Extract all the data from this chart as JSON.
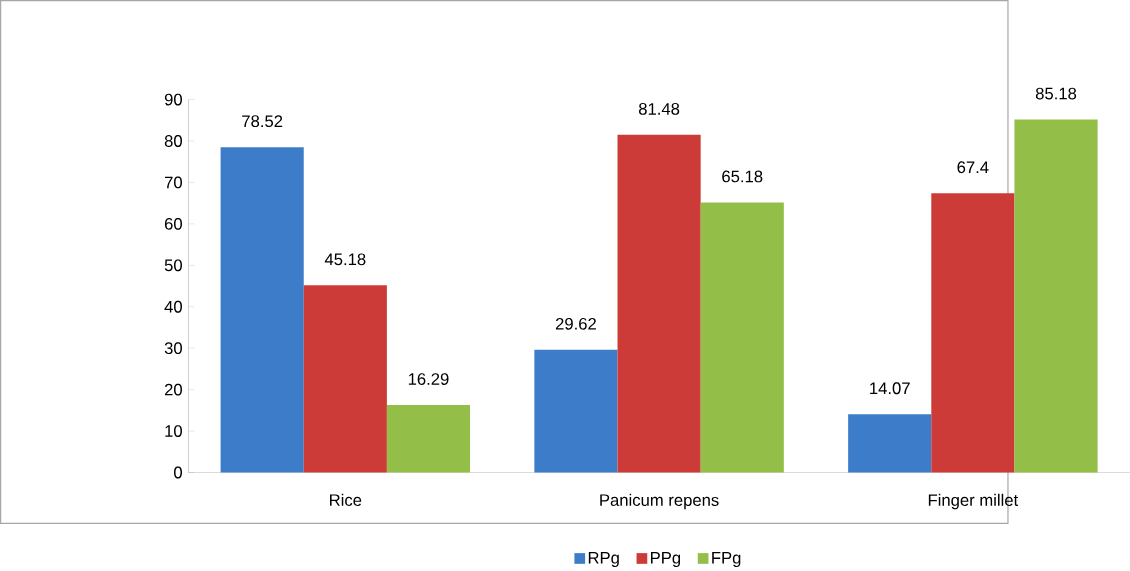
{
  "chart_data": {
    "type": "bar",
    "categories": [
      "Rice",
      "Panicum repens",
      "Finger millet"
    ],
    "series": [
      {
        "name": "RPg",
        "color": "#3d7cc9",
        "values": [
          78.52,
          29.62,
          14.07
        ]
      },
      {
        "name": "PPg",
        "color": "#cc3b37",
        "values": [
          45.18,
          81.48,
          67.4
        ]
      },
      {
        "name": "FPg",
        "color": "#93bf48",
        "values": [
          16.29,
          65.18,
          85.18
        ]
      }
    ],
    "ylim": [
      0,
      90
    ],
    "yticks": [
      0,
      10,
      20,
      30,
      40,
      50,
      60,
      70,
      80,
      90
    ],
    "data_labels": true,
    "grid": false,
    "legend": "bottom"
  }
}
